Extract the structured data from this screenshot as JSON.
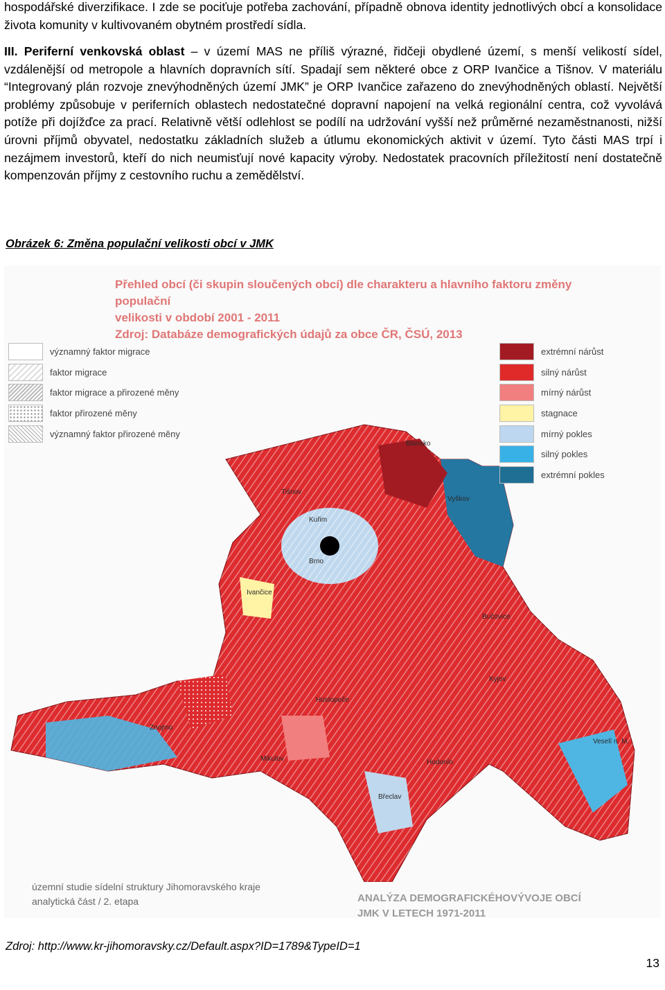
{
  "paragraph1": "hospodářské diverzifikace. I zde se pociťuje potřeba zachování, případně obnova identity jednotlivých obcí a konsolidace života komunity v kultivovaném obytném prostředí sídla.",
  "paragraph2": {
    "bold_lead": "III. Periferní venkovská oblast",
    "text": " – v území MAS ne příliš výrazné, řidčeji obydlené území, s menší velikostí sídel, vzdálenější od metropole a hlavních dopravních sítí. Spadají sem některé obce z ORP Ivančice a Tišnov. V materiálu “Integrovaný plán rozvoje znevýhodněných území JMK” je ORP Ivančice zařazeno do znevýhodněných oblastí. Největší problémy způsobuje v periferních oblastech nedostatečné dopravní napojení na velká regionální centra, což vyvolává potíže při dojížďce za prací. Relativně větší odlehlost se podílí na udržování vyšší než průměrné nezaměstnanosti, nižší úrovni příjmů obyvatel, nedostatku základních služeb a útlumu ekonomických aktivit v území. Tyto části MAS trpí i nezájmem investorů, kteří do nich neumisťují nové kapacity výroby. Nedostatek pracovních příležitostí není dostatečně kompenzován příjmy z cestovního ruchu a zemědělství."
  },
  "figure": {
    "caption": "Obrázek 6: Změna populační velikosti obcí v JMK",
    "title_lines": [
      "Přehled obcí (či skupin sloučených obcí) dle charakteru a hlavního faktoru změny populační",
      "velikosti v období 2001 - 2011",
      "Zdroj: Databáze demografických údajů za obce ČR, ČSÚ, 2013"
    ],
    "legend_factors": [
      {
        "label": "významný faktor migrace",
        "pattern": "solid-white"
      },
      {
        "label": "faktor migrace",
        "pattern": "lines"
      },
      {
        "label": "faktor migrace a přirozené měny",
        "pattern": "dense-lines"
      },
      {
        "label": "faktor přirozené měny",
        "pattern": "dots"
      },
      {
        "label": "významný faktor přirozené měny",
        "pattern": "crosshatch"
      }
    ],
    "legend_change": [
      {
        "label": "extrémní nárůst",
        "color": "#a31b22"
      },
      {
        "label": "silný nárůst",
        "color": "#e02a2a"
      },
      {
        "label": "mírný nárůst",
        "color": "#f17f7f"
      },
      {
        "label": "stagnace",
        "color": "#fff3a6"
      },
      {
        "label": "mírný pokles",
        "color": "#bcd7ef"
      },
      {
        "label": "silný pokles",
        "color": "#38b1e6"
      },
      {
        "label": "extrémní pokles",
        "color": "#1f6f95"
      }
    ],
    "map_labels": [
      "Blansko",
      "Tišnov",
      "Kuřim",
      "Brno",
      "Vyškov",
      "Ivančice",
      "Bučovice",
      "Kyjov",
      "Znojmo",
      "Hustopeče",
      "Mikulov",
      "Břeclav",
      "Hodonín",
      "Veselí n. M."
    ],
    "footer_left": [
      "územní studie sídelní struktury Jihomoravského kraje",
      "analytická část / 2. etapa"
    ],
    "footer_right": [
      "ANALÝZA DEMOGRAFICKÉHOVÝVOJE OBCÍ",
      "JMK V LETECH 1971-2011"
    ]
  },
  "source": "Zdroj: http://www.kr-jihomoravsky.cz/Default.aspx?ID=1789&TypeID=1",
  "page_number": "13"
}
